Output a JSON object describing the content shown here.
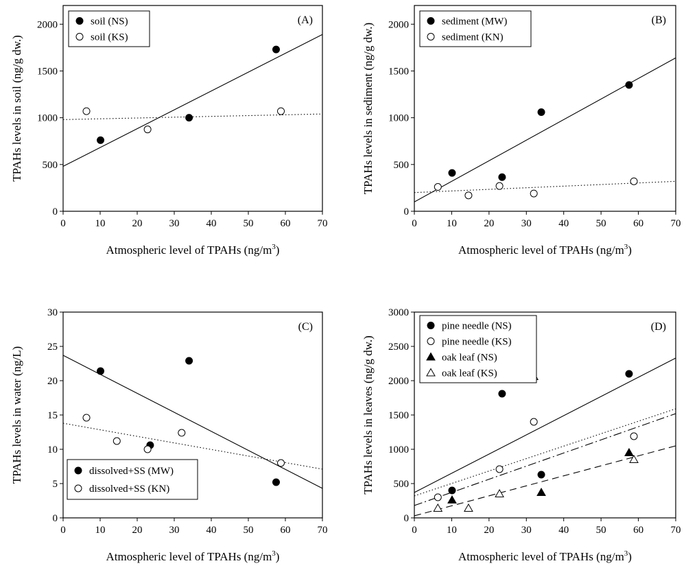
{
  "chart_data": [
    {
      "type": "scatter",
      "panel_label": "(A)",
      "xlabel": "Atmospheric level of TPAHs (ng/m",
      "xlabel_sup": "3",
      "xlabel_end": ")",
      "ylabel": "TPAHs levels in soil (ng/g dw.)",
      "xlim": [
        0,
        70
      ],
      "ylim": [
        0,
        2200
      ],
      "xticks": [
        0,
        10,
        20,
        30,
        40,
        50,
        60,
        70
      ],
      "yticks": [
        0,
        500,
        1000,
        1500,
        2000
      ],
      "legend_position": "top-left",
      "series": [
        {
          "name": "soil (NS)",
          "marker": "filled-circle",
          "points": [
            [
              10.1,
              760
            ],
            [
              34,
              1000
            ],
            [
              57.5,
              1730
            ]
          ]
        },
        {
          "name": "soil (KS)",
          "marker": "open-circle",
          "points": [
            [
              6.3,
              1070
            ],
            [
              22.8,
              875
            ],
            [
              58.8,
              1070
            ]
          ]
        }
      ],
      "trendlines": [
        {
          "style": "solid",
          "points": [
            [
              0,
              480
            ],
            [
              70,
              1890
            ]
          ]
        },
        {
          "style": "dotted",
          "points": [
            [
              0,
              980
            ],
            [
              70,
              1040
            ]
          ]
        }
      ]
    },
    {
      "type": "scatter",
      "panel_label": "(B)",
      "xlabel": "Atmospheric level of TPAHs (ng/m",
      "xlabel_sup": "3",
      "xlabel_end": ")",
      "ylabel": "TPAHs levels in sediment (ng/g dw.)",
      "xlim": [
        0,
        70
      ],
      "ylim": [
        0,
        2200
      ],
      "xticks": [
        0,
        10,
        20,
        30,
        40,
        50,
        60,
        70
      ],
      "yticks": [
        0,
        500,
        1000,
        1500,
        2000
      ],
      "legend_position": "top-left",
      "series": [
        {
          "name": "sediment (MW)",
          "marker": "filled-circle",
          "points": [
            [
              10.1,
              410
            ],
            [
              23.5,
              365
            ],
            [
              34,
              1060
            ],
            [
              57.5,
              1350
            ]
          ]
        },
        {
          "name": "sediment (KN)",
          "marker": "open-circle",
          "points": [
            [
              6.3,
              260
            ],
            [
              14.5,
              170
            ],
            [
              22.8,
              270
            ],
            [
              32,
              190
            ],
            [
              58.8,
              320
            ]
          ]
        }
      ],
      "trendlines": [
        {
          "style": "solid",
          "points": [
            [
              0,
              100
            ],
            [
              70,
              1640
            ]
          ]
        },
        {
          "style": "dotted",
          "points": [
            [
              0,
              200
            ],
            [
              70,
              320
            ]
          ]
        }
      ]
    },
    {
      "type": "scatter",
      "panel_label": "(C)",
      "xlabel": "Atmospheric level of TPAHs (ng/m",
      "xlabel_sup": "3",
      "xlabel_end": ")",
      "ylabel": "TPAHs levels in water (ng/L)",
      "xlim": [
        0,
        70
      ],
      "ylim": [
        0,
        30
      ],
      "xticks": [
        0,
        10,
        20,
        30,
        40,
        50,
        60,
        70
      ],
      "yticks": [
        0,
        5,
        10,
        15,
        20,
        25,
        30
      ],
      "legend_position": "bottom-left",
      "series": [
        {
          "name": "dissolved+SS (MW)",
          "marker": "filled-circle",
          "points": [
            [
              10.1,
              21.4
            ],
            [
              23.5,
              10.6
            ],
            [
              34,
              22.9
            ],
            [
              57.5,
              5.2
            ]
          ]
        },
        {
          "name": "dissolved+SS (KN)",
          "marker": "open-circle",
          "points": [
            [
              6.3,
              14.6
            ],
            [
              14.5,
              11.2
            ],
            [
              22.8,
              10.0
            ],
            [
              32,
              12.4
            ],
            [
              58.8,
              8.0
            ]
          ]
        }
      ],
      "trendlines": [
        {
          "style": "solid",
          "points": [
            [
              0,
              23.7
            ],
            [
              70,
              4.3
            ]
          ]
        },
        {
          "style": "dotted",
          "points": [
            [
              0,
              13.8
            ],
            [
              70,
              7.1
            ]
          ]
        }
      ]
    },
    {
      "type": "scatter",
      "panel_label": "(D)",
      "xlabel": "Atmospheric level of TPAHs (ng/m",
      "xlabel_sup": "3",
      "xlabel_end": ")",
      "ylabel": "TPAHs levels in leaves (ng/g dw.)",
      "xlim": [
        0,
        70
      ],
      "ylim": [
        0,
        3000
      ],
      "xticks": [
        0,
        10,
        20,
        30,
        40,
        50,
        60,
        70
      ],
      "yticks": [
        0,
        500,
        1000,
        1500,
        2000,
        2500,
        3000
      ],
      "legend_position": "top-left",
      "series": [
        {
          "name": "pine needle (NS)",
          "marker": "filled-circle",
          "points": [
            [
              10.1,
              400
            ],
            [
              23.5,
              1810
            ],
            [
              34,
              630
            ],
            [
              57.5,
              2100
            ]
          ]
        },
        {
          "name": "pine needle (KS)",
          "marker": "open-circle",
          "points": [
            [
              6.3,
              300
            ],
            [
              22.8,
              710
            ],
            [
              32,
              1400
            ],
            [
              58.8,
              1190
            ]
          ]
        },
        {
          "name": "oak leaf (NS)",
          "marker": "filled-triangle",
          "points": [
            [
              10.1,
              260
            ],
            [
              34,
              370
            ],
            [
              57.5,
              950
            ]
          ]
        },
        {
          "name": "oak leaf (KS)",
          "marker": "open-triangle",
          "points": [
            [
              6.3,
              140
            ],
            [
              14.5,
              140
            ],
            [
              22.8,
              350
            ],
            [
              32,
              2060
            ],
            [
              58.8,
              850
            ]
          ]
        }
      ],
      "trendlines": [
        {
          "style": "solid",
          "points": [
            [
              0,
              370
            ],
            [
              70,
              2330
            ]
          ]
        },
        {
          "style": "dotted",
          "points": [
            [
              0,
              320
            ],
            [
              70,
              1590
            ]
          ]
        },
        {
          "style": "dashdot",
          "points": [
            [
              0,
              180
            ],
            [
              70,
              1520
            ]
          ]
        },
        {
          "style": "dashed",
          "points": [
            [
              0,
              30
            ],
            [
              70,
              1050
            ]
          ]
        }
      ]
    }
  ]
}
